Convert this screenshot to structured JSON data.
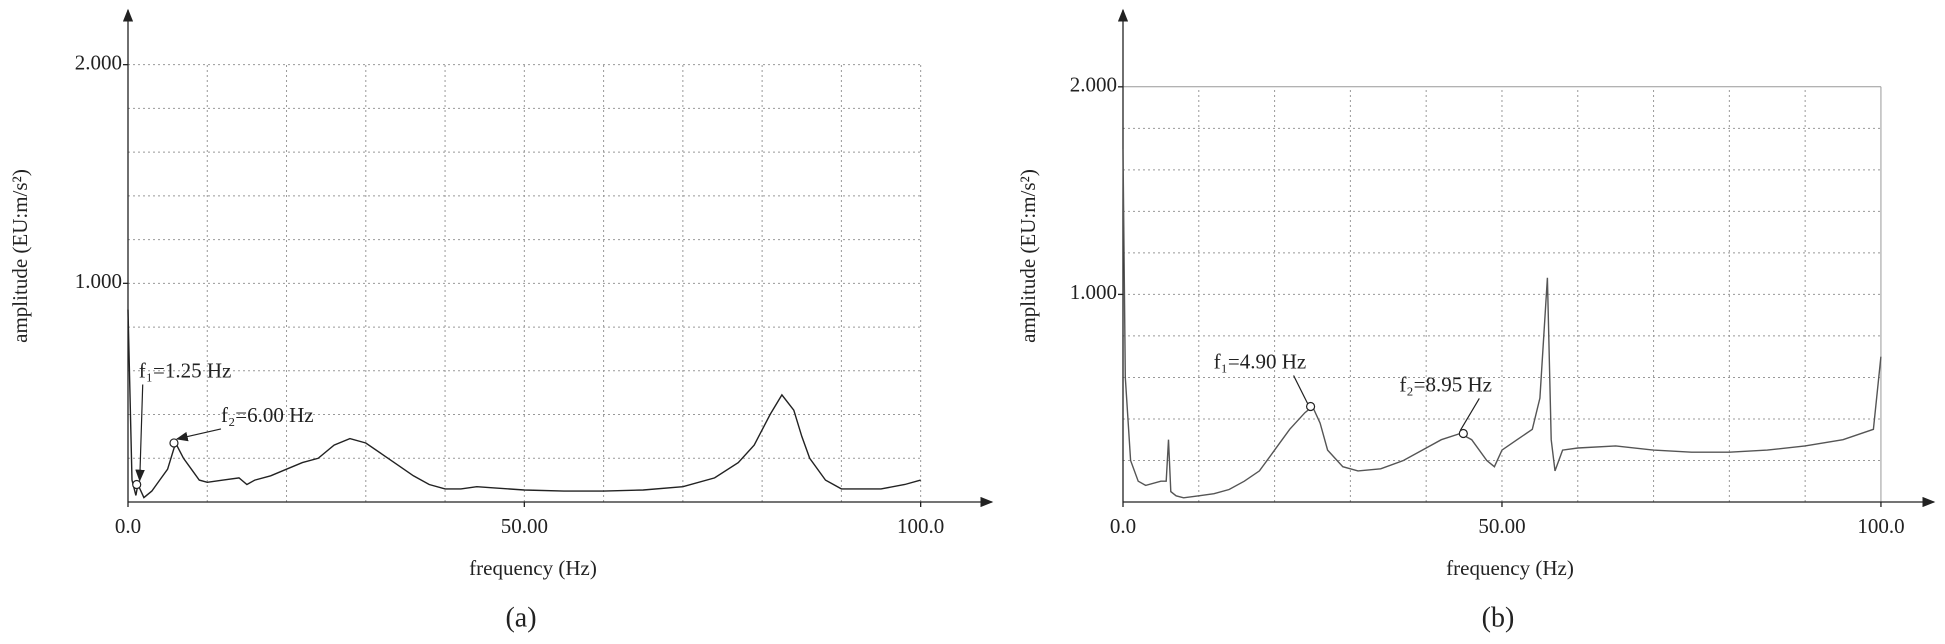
{
  "chart_data": [
    {
      "type": "line",
      "caption": "(a)",
      "xlabel": "frequency (Hz)",
      "ylabel": "amplitude (EU:m/s²)",
      "xlim": [
        0,
        109
      ],
      "ylim": [
        0,
        2.25
      ],
      "xticks": [
        {
          "value": 0,
          "label": "0.0"
        },
        {
          "value": 50,
          "label": "50.00"
        },
        {
          "value": 100,
          "label": "100.0"
        }
      ],
      "yticks": [
        {
          "value": 1,
          "label": "1.000"
        },
        {
          "value": 2,
          "label": "2.000"
        }
      ],
      "xgrid": [
        10,
        20,
        30,
        40,
        50,
        60,
        70,
        80,
        90,
        100
      ],
      "ygrid": [
        0.2,
        0.4,
        0.6,
        0.8,
        1.0,
        1.2,
        1.4,
        1.6,
        1.8,
        2.0
      ],
      "border": false,
      "series": [
        {
          "color": "#222222",
          "x": [
            0,
            0.5,
            1,
            1.25,
            2,
            3,
            4,
            5,
            6,
            7,
            8,
            9,
            10,
            12,
            14,
            15,
            16,
            18,
            20,
            22,
            24,
            26,
            28,
            30,
            32,
            34,
            36,
            38,
            40,
            42,
            44,
            46,
            50,
            55,
            60,
            65,
            70,
            74,
            77,
            79,
            81,
            82.5,
            84,
            85,
            86,
            88,
            90,
            95,
            98,
            100
          ],
          "values": [
            0.88,
            0.1,
            0.03,
            0.08,
            0.02,
            0.05,
            0.1,
            0.15,
            0.27,
            0.2,
            0.15,
            0.1,
            0.09,
            0.1,
            0.11,
            0.08,
            0.1,
            0.12,
            0.15,
            0.18,
            0.2,
            0.26,
            0.29,
            0.27,
            0.22,
            0.17,
            0.12,
            0.08,
            0.06,
            0.06,
            0.07,
            0.065,
            0.055,
            0.05,
            0.05,
            0.055,
            0.07,
            0.11,
            0.18,
            0.26,
            0.4,
            0.49,
            0.42,
            0.3,
            0.2,
            0.1,
            0.06,
            0.06,
            0.08,
            0.1
          ]
        }
      ],
      "annotations": [
        {
          "text": "f₁=1.25 Hz",
          "x": 1.1,
          "y": 0.08
        },
        {
          "text": "f₂=6.00 Hz",
          "x": 5.8,
          "y": 0.27
        }
      ]
    },
    {
      "type": "line",
      "caption": "(b)",
      "xlabel": "frequency (Hz)",
      "ylabel": "amplitude (EU:m/s²)",
      "xlim": [
        0,
        107
      ],
      "ylim": [
        0,
        2.37
      ],
      "xticks": [
        {
          "value": 0,
          "label": "0.0"
        },
        {
          "value": 50,
          "label": "50.00"
        },
        {
          "value": 100,
          "label": "100.0"
        }
      ],
      "yticks": [
        {
          "value": 1,
          "label": "1.000"
        },
        {
          "value": 2,
          "label": "2.000"
        }
      ],
      "xgrid": [
        10,
        20,
        30,
        40,
        50,
        60,
        70,
        80,
        90,
        100
      ],
      "ygrid": [
        0.2,
        0.4,
        0.6,
        0.8,
        1.0,
        1.2,
        1.4,
        1.6,
        1.8,
        2.0
      ],
      "border": true,
      "series": [
        {
          "color": "#555555",
          "x": [
            0,
            0.3,
            1,
            2,
            3,
            5,
            5.7,
            6,
            6.3,
            7,
            8,
            10,
            12,
            14,
            16,
            18,
            20,
            22,
            24,
            25,
            26,
            27,
            29,
            31,
            34,
            37,
            40,
            42,
            44.5,
            46,
            48,
            49,
            50,
            52,
            54,
            55,
            56,
            56.5,
            57,
            58,
            60,
            65,
            70,
            75,
            80,
            85,
            90,
            95,
            99,
            100
          ],
          "values": [
            1.7,
            0.6,
            0.2,
            0.1,
            0.08,
            0.1,
            0.1,
            0.3,
            0.05,
            0.03,
            0.02,
            0.03,
            0.04,
            0.06,
            0.1,
            0.15,
            0.25,
            0.35,
            0.43,
            0.46,
            0.38,
            0.25,
            0.17,
            0.15,
            0.16,
            0.2,
            0.26,
            0.3,
            0.33,
            0.3,
            0.2,
            0.17,
            0.25,
            0.3,
            0.35,
            0.5,
            1.08,
            0.3,
            0.15,
            0.25,
            0.26,
            0.27,
            0.25,
            0.24,
            0.24,
            0.25,
            0.27,
            0.3,
            0.35,
            0.7
          ]
        }
      ],
      "annotations": [
        {
          "text": "f₁=4.90 Hz",
          "x": 24.75,
          "y": 0.46
        },
        {
          "text": "f₂=8.95 Hz",
          "x": 44.9,
          "y": 0.33
        }
      ]
    }
  ]
}
